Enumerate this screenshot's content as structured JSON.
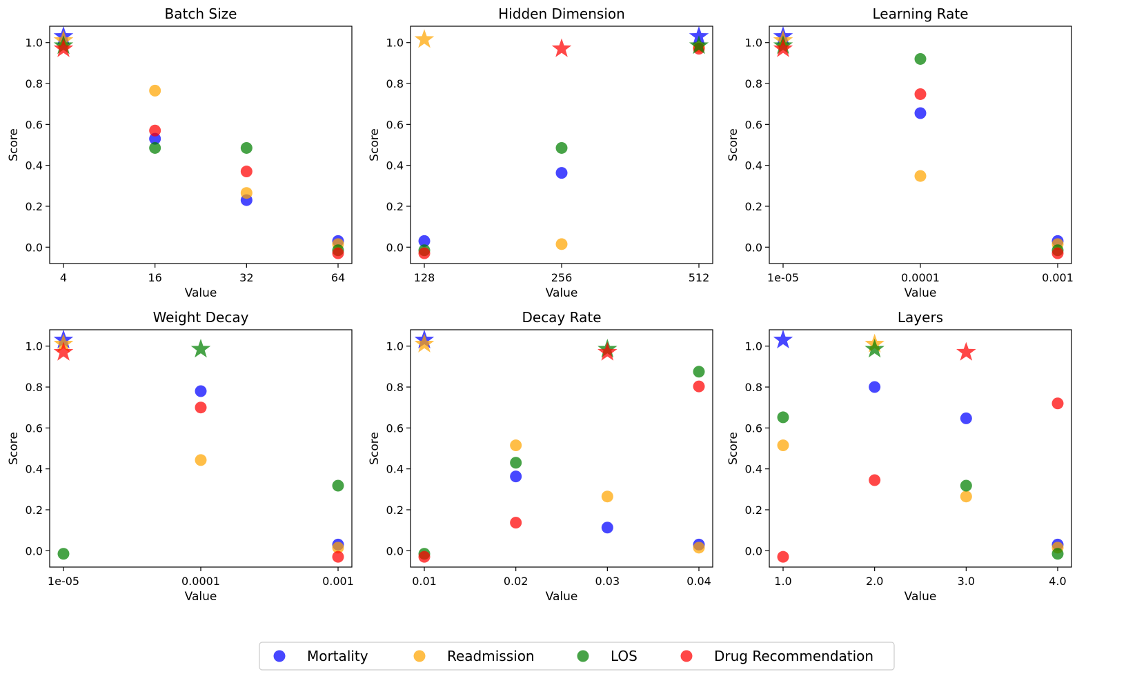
{
  "colors": {
    "Mortality": "#0000ff",
    "Readmission": "#ffa500",
    "LOS": "#008000",
    "Drug Recommendation": "#ff0000"
  },
  "legend": {
    "placement": "bottom-center",
    "entries": [
      "Mortality",
      "Readmission",
      "LOS",
      "Drug Recommendation"
    ]
  },
  "chart_data": [
    {
      "type": "scatter",
      "title": "Batch Size",
      "xlabel": "Value",
      "ylabel": "Score",
      "categories": [
        "4",
        "16",
        "32",
        "64"
      ],
      "ylim": [
        -0.08,
        1.08
      ],
      "yticks": [
        "0.0",
        "0.2",
        "0.4",
        "0.6",
        "0.8",
        "1.0"
      ],
      "series": [
        {
          "name": "Mortality",
          "values": [
            1.03,
            0.53,
            0.23,
            0.03
          ],
          "best_index": 0
        },
        {
          "name": "Readmission",
          "values": [
            1.01,
            0.765,
            0.265,
            0.015
          ],
          "best_index": 0
        },
        {
          "name": "LOS",
          "values": [
            0.985,
            0.485,
            0.485,
            -0.015
          ],
          "best_index": 0
        },
        {
          "name": "Drug Recommendation",
          "values": [
            0.97,
            0.57,
            0.37,
            -0.03
          ],
          "best_index": 0
        }
      ]
    },
    {
      "type": "scatter",
      "title": "Hidden Dimension",
      "xlabel": "Value",
      "ylabel": "Score",
      "categories": [
        "128",
        "256",
        "512"
      ],
      "ylim": [
        -0.08,
        1.08
      ],
      "yticks": [
        "0.0",
        "0.2",
        "0.4",
        "0.6",
        "0.8",
        "1.0"
      ],
      "series": [
        {
          "name": "Mortality",
          "values": [
            0.03,
            0.363,
            1.03
          ],
          "best_index": 2
        },
        {
          "name": "Readmission",
          "values": [
            1.015,
            0.015,
            0.98
          ],
          "best_index": 0
        },
        {
          "name": "LOS",
          "values": [
            -0.015,
            0.485,
            0.985
          ],
          "best_index": 2
        },
        {
          "name": "Drug Recommendation",
          "values": [
            -0.03,
            0.97,
            0.97
          ],
          "best_index": 1
        }
      ]
    },
    {
      "type": "scatter",
      "title": "Learning Rate",
      "xlabel": "Value",
      "ylabel": "Score",
      "categories": [
        "1e-05",
        "0.0001",
        "0.001"
      ],
      "ylim": [
        -0.08,
        1.08
      ],
      "yticks": [
        "0.0",
        "0.2",
        "0.4",
        "0.6",
        "0.8",
        "1.0"
      ],
      "series": [
        {
          "name": "Mortality",
          "values": [
            1.03,
            0.655,
            0.03
          ],
          "best_index": 0
        },
        {
          "name": "Readmission",
          "values": [
            1.01,
            0.348,
            0.015
          ],
          "best_index": 0
        },
        {
          "name": "LOS",
          "values": [
            0.985,
            0.92,
            -0.015
          ],
          "best_index": 0
        },
        {
          "name": "Drug Recommendation",
          "values": [
            0.97,
            0.748,
            -0.03
          ],
          "best_index": 0
        }
      ]
    },
    {
      "type": "scatter",
      "title": "Weight Decay",
      "xlabel": "Value",
      "ylabel": "Score",
      "categories": [
        "1e-05",
        "0.0001",
        "0.001"
      ],
      "ylim": [
        -0.08,
        1.08
      ],
      "yticks": [
        "0.0",
        "0.2",
        "0.4",
        "0.6",
        "0.8",
        "1.0"
      ],
      "series": [
        {
          "name": "Mortality",
          "values": [
            1.03,
            0.78,
            0.03
          ],
          "best_index": 0
        },
        {
          "name": "Readmission",
          "values": [
            1.01,
            0.443,
            0.015
          ],
          "best_index": 0
        },
        {
          "name": "LOS",
          "values": [
            -0.015,
            0.985,
            0.318
          ],
          "best_index": 1
        },
        {
          "name": "Drug Recommendation",
          "values": [
            0.97,
            0.7,
            -0.03
          ],
          "best_index": 0
        }
      ]
    },
    {
      "type": "scatter",
      "title": "Decay Rate",
      "xlabel": "Value",
      "ylabel": "Score",
      "categories": [
        "0.01",
        "0.02",
        "0.03",
        "0.04"
      ],
      "ylim": [
        -0.08,
        1.08
      ],
      "yticks": [
        "0.0",
        "0.2",
        "0.4",
        "0.6",
        "0.8",
        "1.0"
      ],
      "series": [
        {
          "name": "Mortality",
          "values": [
            1.03,
            0.363,
            0.113,
            0.03
          ],
          "best_index": 0
        },
        {
          "name": "Readmission",
          "values": [
            1.01,
            0.515,
            0.265,
            0.015
          ],
          "best_index": 0
        },
        {
          "name": "LOS",
          "values": [
            -0.015,
            0.43,
            0.985,
            0.875
          ],
          "best_index": 2
        },
        {
          "name": "Drug Recommendation",
          "values": [
            -0.03,
            0.137,
            0.97,
            0.803
          ],
          "best_index": 2
        }
      ]
    },
    {
      "type": "scatter",
      "title": "Layers",
      "xlabel": "Value",
      "ylabel": "Score",
      "categories": [
        "1.0",
        "2.0",
        "3.0",
        "4.0"
      ],
      "ylim": [
        -0.08,
        1.08
      ],
      "yticks": [
        "0.0",
        "0.2",
        "0.4",
        "0.6",
        "0.8",
        "1.0"
      ],
      "series": [
        {
          "name": "Mortality",
          "values": [
            1.03,
            0.8,
            0.647,
            0.03
          ],
          "best_index": 0
        },
        {
          "name": "Readmission",
          "values": [
            0.515,
            1.01,
            0.265,
            0.015
          ],
          "best_index": 1
        },
        {
          "name": "LOS",
          "values": [
            0.652,
            0.985,
            0.318,
            -0.015
          ],
          "best_index": 1
        },
        {
          "name": "Drug Recommendation",
          "values": [
            -0.03,
            0.345,
            0.97,
            0.72
          ],
          "best_index": 2
        }
      ]
    }
  ]
}
